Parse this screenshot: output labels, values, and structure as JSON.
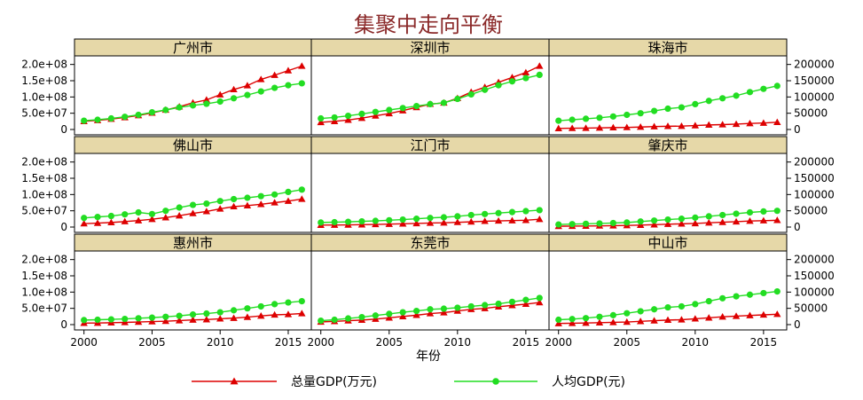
{
  "chart_data": {
    "type": "line",
    "title": "集聚中走向平衡",
    "xlabel": "年份",
    "x": [
      2000,
      2001,
      2002,
      2003,
      2004,
      2005,
      2006,
      2007,
      2008,
      2009,
      2010,
      2011,
      2012,
      2013,
      2014,
      2015,
      2016
    ],
    "x_ticks": [
      "2000",
      "2005",
      "2010",
      "2015"
    ],
    "left_axis": {
      "series": "总量GDP(万元)",
      "ylim": [
        0,
        210000000
      ],
      "ticks": [
        0,
        50000000,
        100000000,
        150000000,
        200000000
      ],
      "tick_labels": [
        "0",
        "5.0e+07",
        "1.0e+08",
        "1.5e+08",
        "2.0e+08"
      ]
    },
    "right_axis": {
      "series": "人均GDP(元)",
      "ylim": [
        0,
        210000
      ],
      "ticks": [
        0,
        50000,
        100000,
        150000,
        200000
      ],
      "tick_labels": [
        "0",
        "50000",
        "100000",
        "150000",
        "200000"
      ]
    },
    "legend": {
      "placement": "bottom",
      "entries": [
        {
          "name": "总量GDP(万元)",
          "color": "#dd0000",
          "marker": "triangle"
        },
        {
          "name": "人均GDP(元)",
          "color": "#22dd22",
          "marker": "circle"
        }
      ]
    },
    "colors": {
      "strip_bg": "#e6d8a8",
      "title": "#8b2a2a",
      "total": "#dd0000",
      "percap": "#22dd22"
    },
    "panels": [
      {
        "name": "广州市",
        "total": [
          25000000,
          28000000,
          32000000,
          37000000,
          43000000,
          51000000,
          60000000,
          70000000,
          82000000,
          91000000,
          107000000,
          123000000,
          135000000,
          154000000,
          167000000,
          181000000,
          195000000
        ],
        "percap": [
          27000,
          30000,
          34000,
          39000,
          45000,
          53000,
          60000,
          68000,
          74000,
          79000,
          86000,
          96000,
          106000,
          117000,
          128000,
          136000,
          142000
        ]
      },
      {
        "name": "深圳市",
        "total": [
          22000000,
          25000000,
          29000000,
          35000000,
          42000000,
          49000000,
          58000000,
          68000000,
          78000000,
          82000000,
          96000000,
          115000000,
          130000000,
          145000000,
          160000000,
          175000000,
          195000000
        ],
        "percap": [
          34000,
          37000,
          42000,
          48000,
          54000,
          60000,
          66000,
          72000,
          78000,
          82000,
          94000,
          108000,
          122000,
          136000,
          148000,
          158000,
          168000
        ]
      },
      {
        "name": "珠海市",
        "total": [
          3300000,
          3800000,
          4300000,
          5000000,
          5800000,
          6400000,
          7500000,
          8900000,
          9900000,
          10400000,
          12000000,
          14000000,
          15000000,
          16600000,
          18600000,
          20000000,
          22300000
        ],
        "percap": [
          27000,
          30000,
          33000,
          36000,
          40000,
          45000,
          50000,
          57000,
          64000,
          68000,
          78000,
          88000,
          96000,
          104000,
          115000,
          125000,
          134000
        ]
      },
      {
        "name": "佛山市",
        "total": [
          10500000,
          12000000,
          14000000,
          17000000,
          20000000,
          24000000,
          29000000,
          35000000,
          42000000,
          48000000,
          56000000,
          63000000,
          66000000,
          70000000,
          75000000,
          80000000,
          86000000
        ],
        "percap": [
          28000,
          31000,
          34000,
          39000,
          45000,
          40000,
          50000,
          60000,
          68000,
          72000,
          80000,
          86000,
          90000,
          95000,
          100000,
          108000,
          115000
        ]
      },
      {
        "name": "江门市",
        "total": [
          6000000,
          6300000,
          6700000,
          7300000,
          8100000,
          9000000,
          10000000,
          11000000,
          12500000,
          13000000,
          14600000,
          16000000,
          18000000,
          19000000,
          20000000,
          21000000,
          24000000
        ],
        "percap": [
          14000,
          15000,
          16000,
          17500,
          19000,
          21000,
          23000,
          25500,
          28000,
          30000,
          33000,
          37000,
          40000,
          43000,
          46000,
          49000,
          52000
        ]
      },
      {
        "name": "肇庆市",
        "total": [
          2600000,
          2900000,
          3200000,
          3700000,
          4300000,
          5000000,
          6000000,
          7300000,
          8800000,
          9900000,
          11000000,
          13000000,
          14700000,
          16600000,
          18500000,
          19700000,
          20800000
        ],
        "percap": [
          8000,
          9000,
          10000,
          11000,
          12500,
          14000,
          17000,
          20000,
          23000,
          25500,
          29000,
          33000,
          37000,
          41000,
          45000,
          48000,
          50000
        ]
      },
      {
        "name": "惠州市",
        "total": [
          4500000,
          5000000,
          5800000,
          6800000,
          8000000,
          9300000,
          10500000,
          12500000,
          14500000,
          15500000,
          18000000,
          20000000,
          23000000,
          26700000,
          30000000,
          31400000,
          34100000
        ],
        "percap": [
          14000,
          15000,
          16000,
          17500,
          19500,
          21500,
          24000,
          27000,
          31000,
          34000,
          38000,
          44000,
          50000,
          56000,
          63000,
          68000,
          72000
        ]
      },
      {
        "name": "东莞市",
        "total": [
          8200000,
          10000000,
          12000000,
          14000000,
          17000000,
          21000000,
          25000000,
          29000000,
          34000000,
          37000000,
          42000000,
          47000000,
          50000000,
          55000000,
          59000000,
          63000000,
          68000000
        ],
        "percap": [
          12000,
          15000,
          19000,
          23000,
          28000,
          33000,
          38000,
          42000,
          47000,
          49000,
          52000,
          56000,
          60000,
          64000,
          70000,
          76000,
          82000
        ]
      },
      {
        "name": "中山市",
        "total": [
          3500000,
          4200000,
          5000000,
          6000000,
          7000000,
          8000000,
          10000000,
          12000000,
          14000000,
          15000000,
          18000000,
          21000000,
          24000000,
          26000000,
          28000000,
          30000000,
          32000000
        ],
        "percap": [
          15000,
          17000,
          20000,
          24000,
          29000,
          35000,
          41000,
          47000,
          53000,
          56000,
          63000,
          72000,
          81000,
          87000,
          92000,
          97000,
          102000
        ]
      }
    ]
  }
}
